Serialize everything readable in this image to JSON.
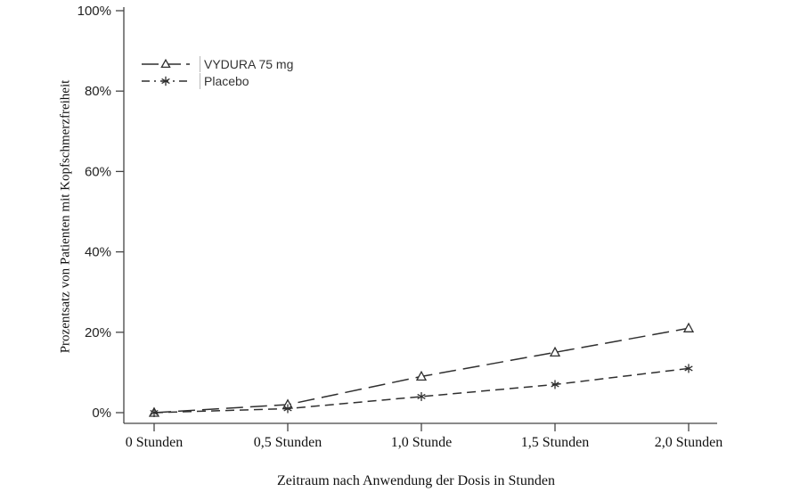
{
  "chart_data": {
    "type": "line",
    "title": "",
    "xlabel": "Zeitraum nach Anwendung der Dosis in Stunden",
    "ylabel": "Prozentsatz von Patienten mit Kopfschmerzfreiheit",
    "x_tick_labels": [
      "0 Stunden",
      "0,5 Stunden",
      "1,0 Stunde",
      "1,5 Stunden",
      "2,0 Stunden"
    ],
    "x_values_hours": [
      0,
      0.5,
      1.0,
      1.5,
      2.0
    ],
    "y_tick_labels": [
      "0%",
      "20%",
      "40%",
      "60%",
      "80%",
      "100%"
    ],
    "y_tick_values": [
      0,
      20,
      40,
      60,
      80,
      100
    ],
    "ylim": [
      0,
      100
    ],
    "y_unit": "%",
    "grid": false,
    "legend_position": "inside-top-left",
    "line_color": "#2f2f2f",
    "axis_color": "#444444",
    "series": [
      {
        "name": "VYDURA 75 mg",
        "marker": "triangle-open",
        "line_style": "long-dash",
        "color": "#2f2f2f",
        "values": [
          0,
          2,
          9,
          15,
          21
        ]
      },
      {
        "name": "Placebo",
        "marker": "asterisk",
        "line_style": "short-dash",
        "color": "#2f2f2f",
        "values": [
          0,
          1,
          4,
          7,
          11
        ]
      }
    ]
  }
}
